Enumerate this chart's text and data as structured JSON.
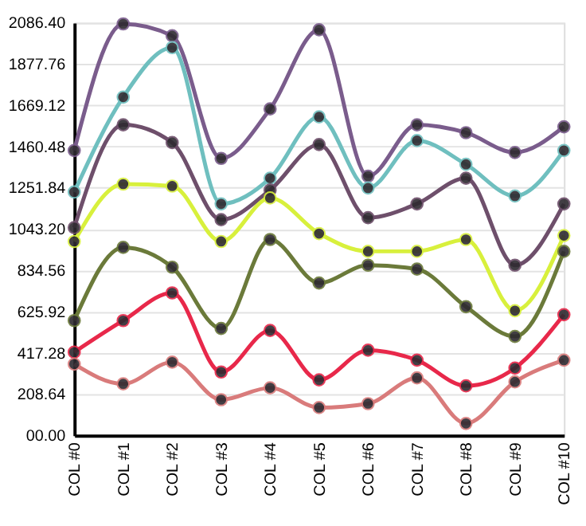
{
  "chart_data": {
    "type": "line",
    "categories": [
      "COL #0",
      "COL #1",
      "COL #2",
      "COL #3",
      "COL #4",
      "COL #5",
      "COL #6",
      "COL #7",
      "COL #8",
      "COL #9",
      "COL #10"
    ],
    "series": [
      {
        "color": "#7a5c8c",
        "values": [
          1440,
          2080,
          2020,
          1400,
          1650,
          2050,
          1310,
          1570,
          1530,
          1430,
          1560
        ]
      },
      {
        "color": "#6fbfbf",
        "values": [
          1230,
          1710,
          1960,
          1170,
          1300,
          1610,
          1250,
          1490,
          1370,
          1210,
          1440
        ]
      },
      {
        "color": "#6e4f6b",
        "values": [
          1050,
          1570,
          1480,
          1090,
          1240,
          1470,
          1100,
          1170,
          1300,
          860,
          1170
        ]
      },
      {
        "color": "#d8f03c",
        "values": [
          980,
          1270,
          1260,
          980,
          1200,
          1020,
          930,
          930,
          990,
          630,
          1010
        ]
      },
      {
        "color": "#6b7a3a",
        "values": [
          580,
          950,
          850,
          540,
          990,
          770,
          860,
          840,
          650,
          500,
          930
        ]
      },
      {
        "color": "#e8284a",
        "values": [
          420,
          580,
          720,
          320,
          530,
          280,
          430,
          380,
          250,
          340,
          610
        ]
      },
      {
        "color": "#d97b7b",
        "values": [
          360,
          260,
          370,
          180,
          240,
          140,
          160,
          290,
          60,
          270,
          380
        ]
      }
    ],
    "ylim": [
      0,
      2086.4
    ],
    "yticks": [
      {
        "value": 0,
        "label": "00.00"
      },
      208.64,
      417.28,
      625.92,
      834.56,
      {
        "value": 1043.2,
        "label": "1043.20"
      },
      1251.84,
      1460.48,
      1669.12,
      1877.76,
      {
        "value": 2086.4,
        "label": "2086.40"
      }
    ],
    "grid": "y",
    "marker": "circle",
    "line_style": "solid"
  }
}
